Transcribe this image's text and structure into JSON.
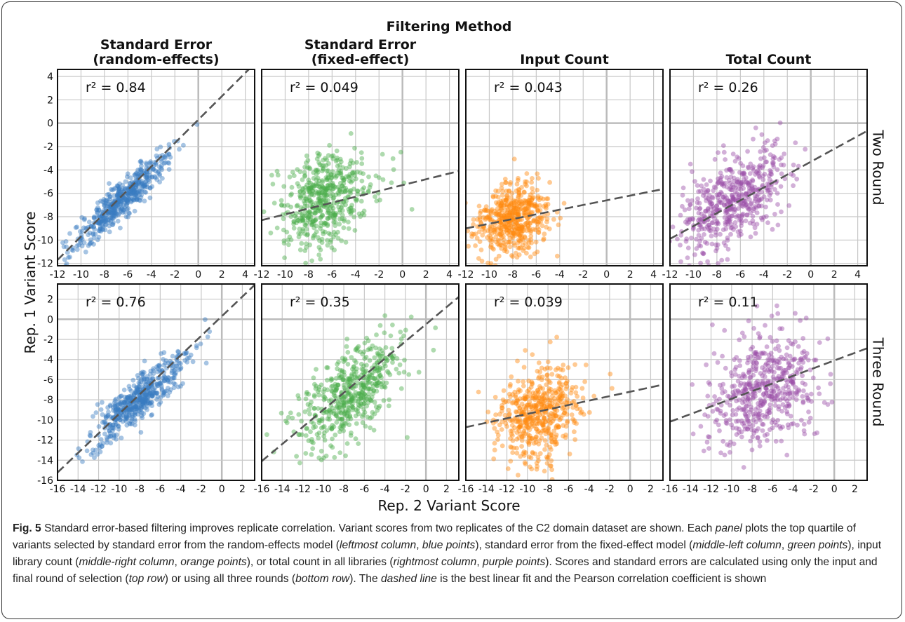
{
  "figure": {
    "super_title": "Filtering Method",
    "xlabel": "Rep. 2 Variant Score",
    "ylabel": "Rep. 1 Variant Score",
    "column_titles": [
      [
        "Standard Error",
        "(random-effects)"
      ],
      [
        "Standard Error",
        "(fixed-effect)"
      ],
      [
        "Input Count"
      ],
      [
        "Total Count"
      ]
    ],
    "row_labels": [
      "Two Round",
      "Three Round"
    ],
    "colors": {
      "random_effects": "#3a7dc0",
      "fixed_effect": "#4cad4c",
      "input_count": "#ff8a10",
      "total_count": "#9b4fa8",
      "fit_line": "#555555",
      "grid": "#c8c8c8"
    }
  },
  "chart_data": [
    {
      "type": "scatter",
      "row": "Two Round",
      "column": "Standard Error (random-effects)",
      "r2_label": "r² = 0.84",
      "xlim": [
        -12,
        4.8
      ],
      "ylim": [
        -12.2,
        4.6
      ],
      "xticks": [
        -12,
        -10,
        -8,
        -6,
        -4,
        -2,
        0,
        2,
        4
      ],
      "yticks": [
        -12,
        -10,
        -8,
        -6,
        -4,
        -2,
        0,
        2,
        4
      ],
      "fit": {
        "slope": 1.0,
        "intercept": 0.3
      },
      "point_cloud": {
        "center": [
          -6.5,
          -6.5
        ],
        "spread": [
          2.0,
          2.0
        ],
        "corr": 0.92
      }
    },
    {
      "type": "scatter",
      "row": "Two Round",
      "column": "Standard Error (fixed-effect)",
      "r2_label": "r² = 0.049",
      "xlim": [
        -12,
        4.8
      ],
      "ylim": [
        -12.2,
        4.6
      ],
      "xticks": [
        -12,
        -10,
        -8,
        -6,
        -4,
        -2,
        0,
        2,
        4
      ],
      "yticks": [
        -12,
        -10,
        -8,
        -6,
        -4,
        -2,
        0,
        2,
        4
      ],
      "fit": {
        "slope": 0.25,
        "intercept": -5.3
      },
      "point_cloud": {
        "center": [
          -6.5,
          -6.5
        ],
        "spread": [
          2.0,
          2.0
        ],
        "corr": 0.22
      }
    },
    {
      "type": "scatter",
      "row": "Two Round",
      "column": "Input Count",
      "r2_label": "r² = 0.043",
      "xlim": [
        -12,
        4.8
      ],
      "ylim": [
        -12.2,
        4.6
      ],
      "xticks": [
        -12,
        -10,
        -8,
        -6,
        -4,
        -2,
        0,
        2,
        4
      ],
      "yticks": [
        -12,
        -10,
        -8,
        -6,
        -4,
        -2,
        0,
        2,
        4
      ],
      "fit": {
        "slope": 0.2,
        "intercept": -6.6
      },
      "point_cloud": {
        "center": [
          -8.0,
          -8.2
        ],
        "spread": [
          1.5,
          1.6
        ],
        "corr": 0.21
      }
    },
    {
      "type": "scatter",
      "row": "Two Round",
      "column": "Total Count",
      "r2_label": "r² = 0.26",
      "xlim": [
        -12,
        4.8
      ],
      "ylim": [
        -12.2,
        4.6
      ],
      "xticks": [
        -12,
        -10,
        -8,
        -6,
        -4,
        -2,
        0,
        2,
        4
      ],
      "yticks": [
        -12,
        -10,
        -8,
        -6,
        -4,
        -2,
        0,
        2,
        4
      ],
      "fit": {
        "slope": 0.55,
        "intercept": -3.3
      },
      "point_cloud": {
        "center": [
          -6.5,
          -6.5
        ],
        "spread": [
          2.2,
          2.2
        ],
        "corr": 0.51
      }
    },
    {
      "type": "scatter",
      "row": "Three Round",
      "column": "Standard Error (random-effects)",
      "r2_label": "r² = 0.76",
      "xlim": [
        -16,
        3.2
      ],
      "ylim": [
        -16,
        3.5
      ],
      "xticks": [
        -16,
        -14,
        -12,
        -10,
        -8,
        -6,
        -4,
        -2,
        0,
        2
      ],
      "yticks": [
        -16,
        -14,
        -12,
        -10,
        -8,
        -6,
        -4,
        -2,
        0,
        2
      ],
      "fit": {
        "slope": 0.97,
        "intercept": 0.3
      },
      "point_cloud": {
        "center": [
          -8.0,
          -7.8
        ],
        "spread": [
          2.3,
          2.3
        ],
        "corr": 0.87
      }
    },
    {
      "type": "scatter",
      "row": "Three Round",
      "column": "Standard Error (fixed-effect)",
      "r2_label": "r² = 0.35",
      "xlim": [
        -16,
        3.2
      ],
      "ylim": [
        -16,
        3.5
      ],
      "xticks": [
        -16,
        -14,
        -12,
        -10,
        -8,
        -6,
        -4,
        -2,
        0,
        2
      ],
      "yticks": [
        -16,
        -14,
        -12,
        -10,
        -8,
        -6,
        -4,
        -2,
        0,
        2
      ],
      "fit": {
        "slope": 0.85,
        "intercept": -0.5
      },
      "point_cloud": {
        "center": [
          -7.5,
          -7.5
        ],
        "spread": [
          2.5,
          2.7
        ],
        "corr": 0.59
      }
    },
    {
      "type": "scatter",
      "row": "Three Round",
      "column": "Input Count",
      "r2_label": "r² = 0.039",
      "xlim": [
        -16,
        3.2
      ],
      "ylim": [
        -16,
        3.5
      ],
      "xticks": [
        -16,
        -14,
        -12,
        -10,
        -8,
        -6,
        -4,
        -2,
        0,
        2
      ],
      "yticks": [
        -16,
        -14,
        -12,
        -10,
        -8,
        -6,
        -4,
        -2,
        0,
        2
      ],
      "fit": {
        "slope": 0.22,
        "intercept": -7.2
      },
      "point_cloud": {
        "center": [
          -9.0,
          -9.5
        ],
        "spread": [
          2.0,
          2.4
        ],
        "corr": 0.2
      }
    },
    {
      "type": "scatter",
      "row": "Three Round",
      "column": "Total Count",
      "r2_label": "r² = 0.11",
      "xlim": [
        -16,
        3.2
      ],
      "ylim": [
        -16,
        3.5
      ],
      "xticks": [
        -16,
        -14,
        -12,
        -10,
        -8,
        -6,
        -4,
        -2,
        0,
        2
      ],
      "yticks": [
        -16,
        -14,
        -12,
        -10,
        -8,
        -6,
        -4,
        -2,
        0,
        2
      ],
      "fit": {
        "slope": 0.38,
        "intercept": -4.1
      },
      "point_cloud": {
        "center": [
          -7.0,
          -7.0
        ],
        "spread": [
          2.6,
          3.0
        ],
        "corr": 0.33
      }
    }
  ],
  "caption": {
    "label": "Fig. 5",
    "parts": [
      {
        "t": "Standard error-based filtering improves replicate correlation. Variant scores from two replicates of the C2 domain dataset are shown. Each ",
        "i": false
      },
      {
        "t": "panel",
        "i": true
      },
      {
        "t": " plots the top quartile of variants selected by standard error from the random-effects model (",
        "i": false
      },
      {
        "t": "leftmost column",
        "i": true
      },
      {
        "t": ", ",
        "i": false
      },
      {
        "t": "blue points",
        "i": true
      },
      {
        "t": "), standard error from the fixed-effect model (",
        "i": false
      },
      {
        "t": "middle-left column",
        "i": true
      },
      {
        "t": ", ",
        "i": false
      },
      {
        "t": "green points",
        "i": true
      },
      {
        "t": "), input library count (",
        "i": false
      },
      {
        "t": "middle-right column",
        "i": true
      },
      {
        "t": ", ",
        "i": false
      },
      {
        "t": "orange points",
        "i": true
      },
      {
        "t": "), or total count in all libraries (",
        "i": false
      },
      {
        "t": "rightmost column",
        "i": true
      },
      {
        "t": ", ",
        "i": false
      },
      {
        "t": "purple points",
        "i": true
      },
      {
        "t": "). Scores and standard errors are calculated using only the input and final round of selection (",
        "i": false
      },
      {
        "t": "top row",
        "i": true
      },
      {
        "t": ") or using all three rounds (",
        "i": false
      },
      {
        "t": "bottom row",
        "i": true
      },
      {
        "t": "). The ",
        "i": false
      },
      {
        "t": "dashed line",
        "i": true
      },
      {
        "t": " is the best linear fit and the Pearson correlation coefficient is shown",
        "i": false
      }
    ]
  }
}
